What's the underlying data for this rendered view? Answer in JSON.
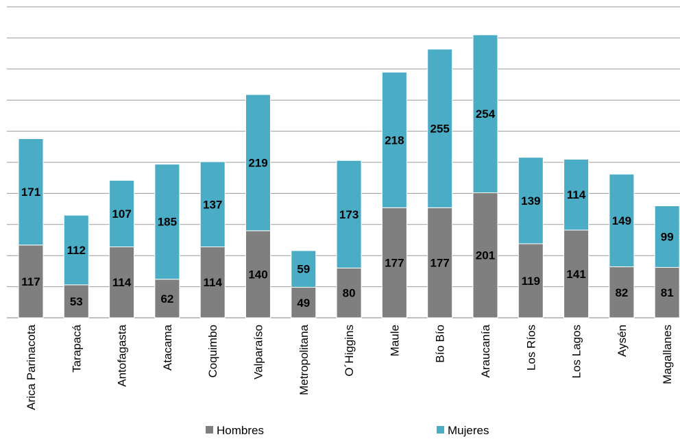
{
  "chart_data": {
    "type": "bar",
    "stacked": true,
    "categories": [
      "Arica Parinacota",
      "Tarapacá",
      "Antofagasta",
      "Atacama",
      "Coquimbo",
      "Valparaíso",
      "Metropolitana",
      "O´Higgins",
      "Maule",
      "Bío Bío",
      "Araucanía",
      "Los Ríos",
      "Los Lagos",
      "Aysén",
      "Magallanes"
    ],
    "series": [
      {
        "name": "Hombres",
        "color": "#7f7f7f",
        "values": [
          117,
          53,
          114,
          62,
          114,
          140,
          49,
          80,
          177,
          177,
          201,
          119,
          141,
          82,
          81
        ]
      },
      {
        "name": "Mujeres",
        "color": "#4bacc6",
        "values": [
          171,
          112,
          107,
          185,
          137,
          219,
          59,
          173,
          218,
          255,
          254,
          139,
          114,
          149,
          99
        ]
      }
    ],
    "ylim": [
      0,
      500
    ],
    "y_gridline_step": 50,
    "grid": true,
    "legend_position": "bottom"
  }
}
